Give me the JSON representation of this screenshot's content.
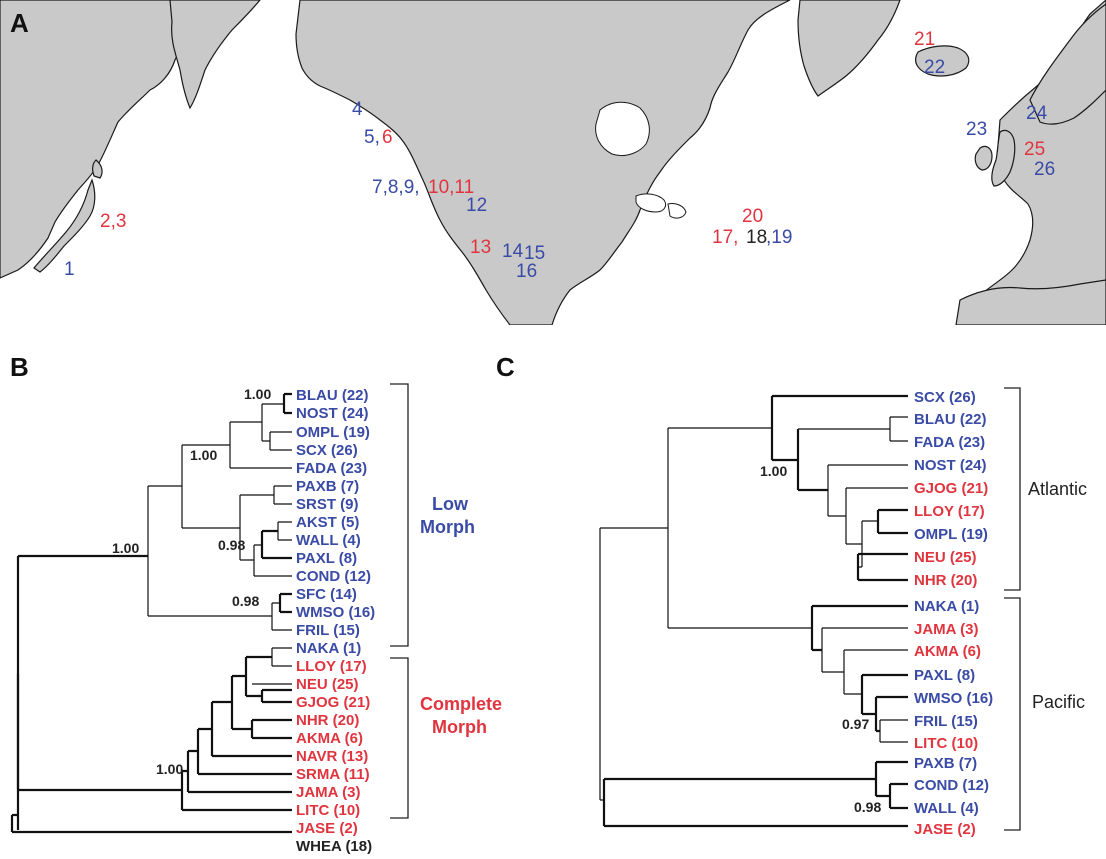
{
  "panel_labels": {
    "a": "A",
    "b": "B",
    "c": "C"
  },
  "colors": {
    "blue": "#3a4ba6",
    "red": "#e0353f",
    "black": "#222222",
    "land": "#c9c9c9"
  },
  "map_labels": [
    {
      "text": "1",
      "color": "blue"
    },
    {
      "text": "2,3",
      "color": "red"
    },
    {
      "text": "4",
      "color": "blue"
    },
    {
      "text": "5,",
      "color": "blue"
    },
    {
      "text": "6",
      "color": "red"
    },
    {
      "text": "7,8,9,",
      "color": "blue"
    },
    {
      "text": "10,11",
      "color": "red"
    },
    {
      "text": "12",
      "color": "blue"
    },
    {
      "text": "13",
      "color": "red"
    },
    {
      "text": "14",
      "color": "blue"
    },
    {
      "text": "15",
      "color": "blue"
    },
    {
      "text": "16",
      "color": "blue"
    },
    {
      "text": "20",
      "color": "red"
    },
    {
      "text": "17,",
      "color": "red"
    },
    {
      "text": "18",
      "color": "black"
    },
    {
      "text": ",19",
      "color": "blue"
    },
    {
      "text": "21",
      "color": "red"
    },
    {
      "text": "22",
      "color": "blue"
    },
    {
      "text": "23",
      "color": "blue"
    },
    {
      "text": "24",
      "color": "blue"
    },
    {
      "text": "25",
      "color": "red"
    },
    {
      "text": "26",
      "color": "blue"
    }
  ],
  "tree_b": {
    "taxa": [
      {
        "label": "BLAU (22)",
        "color": "blue"
      },
      {
        "label": "NOST (24)",
        "color": "blue"
      },
      {
        "label": "OMPL (19)",
        "color": "blue"
      },
      {
        "label": "SCX (26)",
        "color": "blue"
      },
      {
        "label": "FADA (23)",
        "color": "blue"
      },
      {
        "label": "PAXB (7)",
        "color": "blue"
      },
      {
        "label": "SRST (9)",
        "color": "blue"
      },
      {
        "label": "AKST (5)",
        "color": "blue"
      },
      {
        "label": "WALL (4)",
        "color": "blue"
      },
      {
        "label": "PAXL (8)",
        "color": "blue"
      },
      {
        "label": "COND (12)",
        "color": "blue"
      },
      {
        "label": "SFC (14)",
        "color": "blue"
      },
      {
        "label": "WMSO (16)",
        "color": "blue"
      },
      {
        "label": "FRIL (15)",
        "color": "blue"
      },
      {
        "label": "NAKA (1)",
        "color": "blue"
      },
      {
        "label": "LLOY (17)",
        "color": "red"
      },
      {
        "label": "NEU (25)",
        "color": "red"
      },
      {
        "label": "GJOG (21)",
        "color": "red"
      },
      {
        "label": "NHR (20)",
        "color": "red"
      },
      {
        "label": "AKMA (6)",
        "color": "red"
      },
      {
        "label": "NAVR (13)",
        "color": "red"
      },
      {
        "label": "SRMA (11)",
        "color": "red"
      },
      {
        "label": "JAMA (3)",
        "color": "red"
      },
      {
        "label": "LITC (10)",
        "color": "red"
      },
      {
        "label": "JASE (2)",
        "color": "red"
      },
      {
        "label": "WHEA (18)",
        "color": "black"
      }
    ],
    "supports": [
      "1.00",
      "1.00",
      "0.98",
      "0.98",
      "1.00",
      "1.00"
    ],
    "clades": [
      {
        "lines": [
          "Low",
          "Morph"
        ],
        "color": "blue"
      },
      {
        "lines": [
          "Complete",
          "Morph"
        ],
        "color": "red"
      }
    ]
  },
  "tree_c": {
    "taxa": [
      {
        "label": "SCX (26)",
        "color": "blue"
      },
      {
        "label": "BLAU (22)",
        "color": "blue"
      },
      {
        "label": "FADA (23)",
        "color": "blue"
      },
      {
        "label": "NOST (24)",
        "color": "blue"
      },
      {
        "label": "GJOG (21)",
        "color": "red"
      },
      {
        "label": "LLOY (17)",
        "color": "red"
      },
      {
        "label": "OMPL (19)",
        "color": "blue"
      },
      {
        "label": "NEU (25)",
        "color": "red"
      },
      {
        "label": "NHR (20)",
        "color": "red"
      },
      {
        "label": "NAKA (1)",
        "color": "blue"
      },
      {
        "label": "JAMA (3)",
        "color": "red"
      },
      {
        "label": "AKMA (6)",
        "color": "red"
      },
      {
        "label": "PAXL (8)",
        "color": "blue"
      },
      {
        "label": "WMSO (16)",
        "color": "blue"
      },
      {
        "label": "FRIL (15)",
        "color": "blue"
      },
      {
        "label": "LITC (10)",
        "color": "red"
      },
      {
        "label": "PAXB (7)",
        "color": "blue"
      },
      {
        "label": "COND (12)",
        "color": "blue"
      },
      {
        "label": "WALL (4)",
        "color": "blue"
      },
      {
        "label": "JASE (2)",
        "color": "red"
      }
    ],
    "supports": [
      "1.00",
      "0.97",
      "0.98"
    ],
    "clades": [
      {
        "lines": [
          "Atlantic"
        ],
        "color": "black"
      },
      {
        "lines": [
          "Pacific"
        ],
        "color": "black"
      }
    ]
  }
}
